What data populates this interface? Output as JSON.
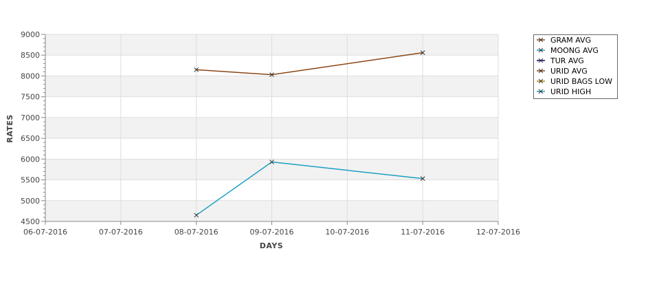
{
  "chart_data": {
    "type": "line",
    "xlabel": "DAYS",
    "ylabel": "RATES",
    "x_ticks": [
      "06-07-2016",
      "07-07-2016",
      "08-07-2016",
      "09-07-2016",
      "10-07-2016",
      "11-07-2016",
      "12-07-2016"
    ],
    "y_ticks": [
      4500,
      5000,
      5500,
      6000,
      6500,
      7000,
      7500,
      8000,
      8500,
      9000
    ],
    "ylim": [
      4500,
      9000
    ],
    "grid": true,
    "legend_position": "top-right",
    "series": [
      {
        "name": "GRAM AVG",
        "color": "#8b4513",
        "points": []
      },
      {
        "name": "MOONG AVG",
        "color": "#1a9fc0",
        "points": []
      },
      {
        "name": "TUR AVG",
        "color": "#000080",
        "points": []
      },
      {
        "name": "URID AVG",
        "color": "#8b4513",
        "points": [
          {
            "x": "08-07-2016",
            "y": 8150
          },
          {
            "x": "09-07-2016",
            "y": 8030
          },
          {
            "x": "11-07-2016",
            "y": 8560
          }
        ]
      },
      {
        "name": "URID BAGS LOW",
        "color": "#b8860b",
        "points": []
      },
      {
        "name": "URID HIGH",
        "color": "#1a9fc0",
        "points": [
          {
            "x": "08-07-2016",
            "y": 4650
          },
          {
            "x": "09-07-2016",
            "y": 5930
          },
          {
            "x": "11-07-2016",
            "y": 5530
          }
        ]
      }
    ]
  }
}
